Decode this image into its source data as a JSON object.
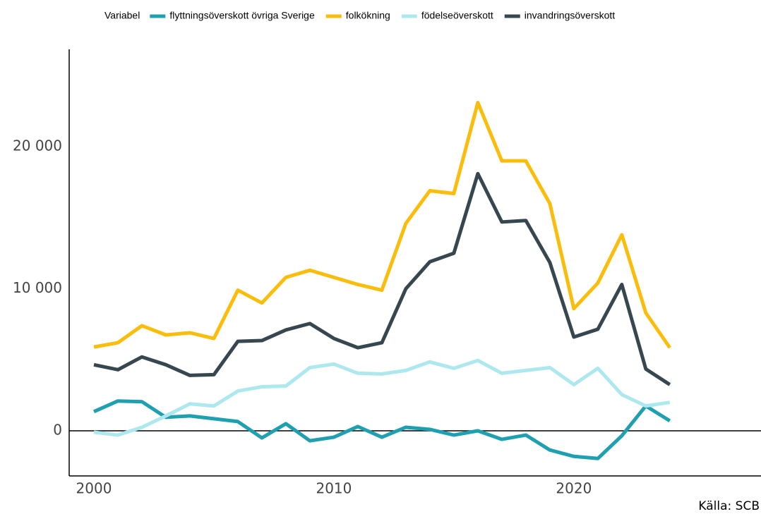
{
  "chart_data": {
    "type": "line",
    "legend_title": "Variabel",
    "caption": "Källa: SCB",
    "x": [
      2000,
      2001,
      2002,
      2003,
      2004,
      2005,
      2006,
      2007,
      2008,
      2009,
      2010,
      2011,
      2012,
      2013,
      2014,
      2015,
      2016,
      2017,
      2018,
      2019,
      2020,
      2021,
      2022,
      2023,
      2024
    ],
    "series": [
      {
        "name": "flyttningsöverskott övriga Sverige",
        "color": "#1fa0b0",
        "values": [
          1350,
          2100,
          2050,
          950,
          1050,
          850,
          650,
          -500,
          500,
          -700,
          -450,
          300,
          -450,
          250,
          100,
          -300,
          0,
          -600,
          -300,
          -1350,
          -1800,
          -1950,
          -350,
          1750,
          700
        ]
      },
      {
        "name": "folkökning",
        "color": "#fbbd0b",
        "values": [
          5900,
          6200,
          7400,
          6750,
          6900,
          6500,
          9900,
          9000,
          10800,
          11300,
          10800,
          10300,
          9900,
          14600,
          16900,
          16700,
          23100,
          19000,
          19000,
          16000,
          8600,
          10400,
          13800,
          8300,
          5850
        ]
      },
      {
        "name": "födelseöverskott",
        "color": "#aee8ef",
        "values": [
          -100,
          -300,
          250,
          1050,
          1900,
          1750,
          2800,
          3100,
          3150,
          4450,
          4700,
          4050,
          4000,
          4250,
          4850,
          4400,
          4950,
          4050,
          4250,
          4450,
          3250,
          4400,
          2550,
          1750,
          2000
        ]
      },
      {
        "name": "invandringsöverskott",
        "color": "#37474f",
        "values": [
          4650,
          4300,
          5200,
          4650,
          3900,
          3950,
          6300,
          6350,
          7100,
          7550,
          6500,
          5850,
          6200,
          10000,
          11900,
          12500,
          18100,
          14700,
          14800,
          11850,
          6600,
          7150,
          10300,
          4350,
          3250
        ]
      }
    ],
    "xlim": [
      1998.97,
      2027.8
    ],
    "ylim": [
      -3176,
      26850
    ],
    "xticks": [
      2000,
      2010,
      2020
    ],
    "yticks": [
      {
        "value": 0,
        "label": "0"
      },
      {
        "value": 10000,
        "label": "10 000"
      },
      {
        "value": 20000,
        "label": "20 000"
      }
    ],
    "grid": false
  }
}
